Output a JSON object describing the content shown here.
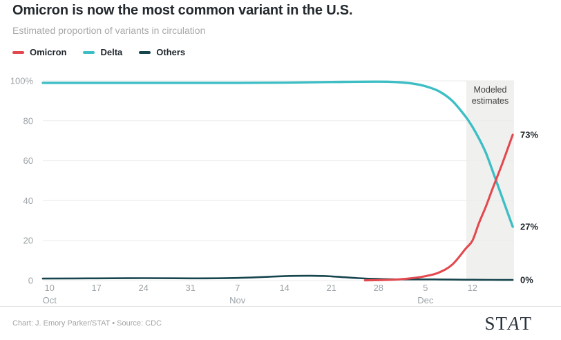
{
  "header": {
    "title": "Omicron is now the most common variant in the U.S.",
    "subtitle": "Estimated proportion of variants in circulation"
  },
  "legend": {
    "items": [
      {
        "label": "Omicron",
        "color": "#e2494f"
      },
      {
        "label": "Delta",
        "color": "#3dbec5"
      },
      {
        "label": "Others",
        "color": "#17454e"
      }
    ]
  },
  "chart_data": {
    "type": "line",
    "title": "Omicron is now the most common variant in the U.S.",
    "subtitle": "Estimated proportion of variants in circulation",
    "xlabel": "",
    "ylabel": "",
    "ylim": [
      0,
      100
    ],
    "grid": true,
    "legend_position": "top-left",
    "x_unit": "days since Oct 9",
    "y_ticks": [
      {
        "label": "100%",
        "value": 100
      },
      {
        "label": "80",
        "value": 80
      },
      {
        "label": "60",
        "value": 60
      },
      {
        "label": "40",
        "value": 40
      },
      {
        "label": "20",
        "value": 20
      },
      {
        "label": "0",
        "value": 0
      }
    ],
    "x_ticks": [
      {
        "label": "10",
        "day": 1,
        "month": "Oct"
      },
      {
        "label": "17",
        "day": 8
      },
      {
        "label": "24",
        "day": 15
      },
      {
        "label": "31",
        "day": 22
      },
      {
        "label": "7",
        "day": 29,
        "month": "Nov"
      },
      {
        "label": "14",
        "day": 36
      },
      {
        "label": "21",
        "day": 43
      },
      {
        "label": "28",
        "day": 50
      },
      {
        "label": "5",
        "day": 57,
        "month": "Dec"
      },
      {
        "label": "12",
        "day": 64
      }
    ],
    "modeled_region": {
      "start_day": 63.1,
      "end_day": 70.2,
      "label_lines": [
        "Modeled",
        "estimates"
      ],
      "fill": "#f0f0ef"
    },
    "series": [
      {
        "name": "Omicron",
        "color": "#e2494f",
        "width": 3.1,
        "end_label": "73%",
        "points": [
          [
            48,
            0.1
          ],
          [
            51,
            0.3
          ],
          [
            53,
            0.6
          ],
          [
            55,
            1.2
          ],
          [
            57,
            2.2
          ],
          [
            59,
            4
          ],
          [
            61,
            8
          ],
          [
            63,
            16
          ],
          [
            64,
            20
          ],
          [
            65,
            29
          ],
          [
            66,
            37
          ],
          [
            67,
            46
          ],
          [
            68.5,
            59
          ],
          [
            70,
            73
          ]
        ]
      },
      {
        "name": "Delta",
        "color": "#3dbec5",
        "width": 3.4,
        "end_label": "27%",
        "points": [
          [
            0,
            99
          ],
          [
            8,
            99
          ],
          [
            15,
            99
          ],
          [
            22,
            99
          ],
          [
            29,
            99
          ],
          [
            36,
            99.1
          ],
          [
            43,
            99.4
          ],
          [
            50,
            99.6
          ],
          [
            53,
            99.3
          ],
          [
            55,
            98.7
          ],
          [
            57,
            97.3
          ],
          [
            59,
            94.8
          ],
          [
            61,
            90
          ],
          [
            63,
            82
          ],
          [
            64,
            77
          ],
          [
            65,
            71
          ],
          [
            66,
            64
          ],
          [
            67,
            55
          ],
          [
            68.5,
            41
          ],
          [
            70,
            27
          ]
        ]
      },
      {
        "name": "Others",
        "color": "#17454e",
        "width": 2.6,
        "end_label": "0%",
        "points": [
          [
            0,
            1
          ],
          [
            8,
            1.1
          ],
          [
            15,
            1.2
          ],
          [
            22,
            1.1
          ],
          [
            29,
            1.3
          ],
          [
            36,
            2.2
          ],
          [
            40,
            2.4
          ],
          [
            43,
            2.1
          ],
          [
            47,
            1.2
          ],
          [
            50,
            0.8
          ],
          [
            53,
            0.6
          ],
          [
            57,
            0.6
          ],
          [
            61,
            0.5
          ],
          [
            64,
            0.4
          ],
          [
            67,
            0.35
          ],
          [
            70,
            0.3
          ]
        ]
      }
    ],
    "colors": {
      "grid": "#ebebeb",
      "axis_text": "#9ca3a8",
      "annotation": "#424242",
      "end_label": "#1d2328"
    }
  },
  "footer": {
    "credit": "Chart: J. Emory Parker/STAT • Source: CDC",
    "logo": {
      "pre": "ST",
      "italic": "A",
      "post": "T"
    }
  }
}
